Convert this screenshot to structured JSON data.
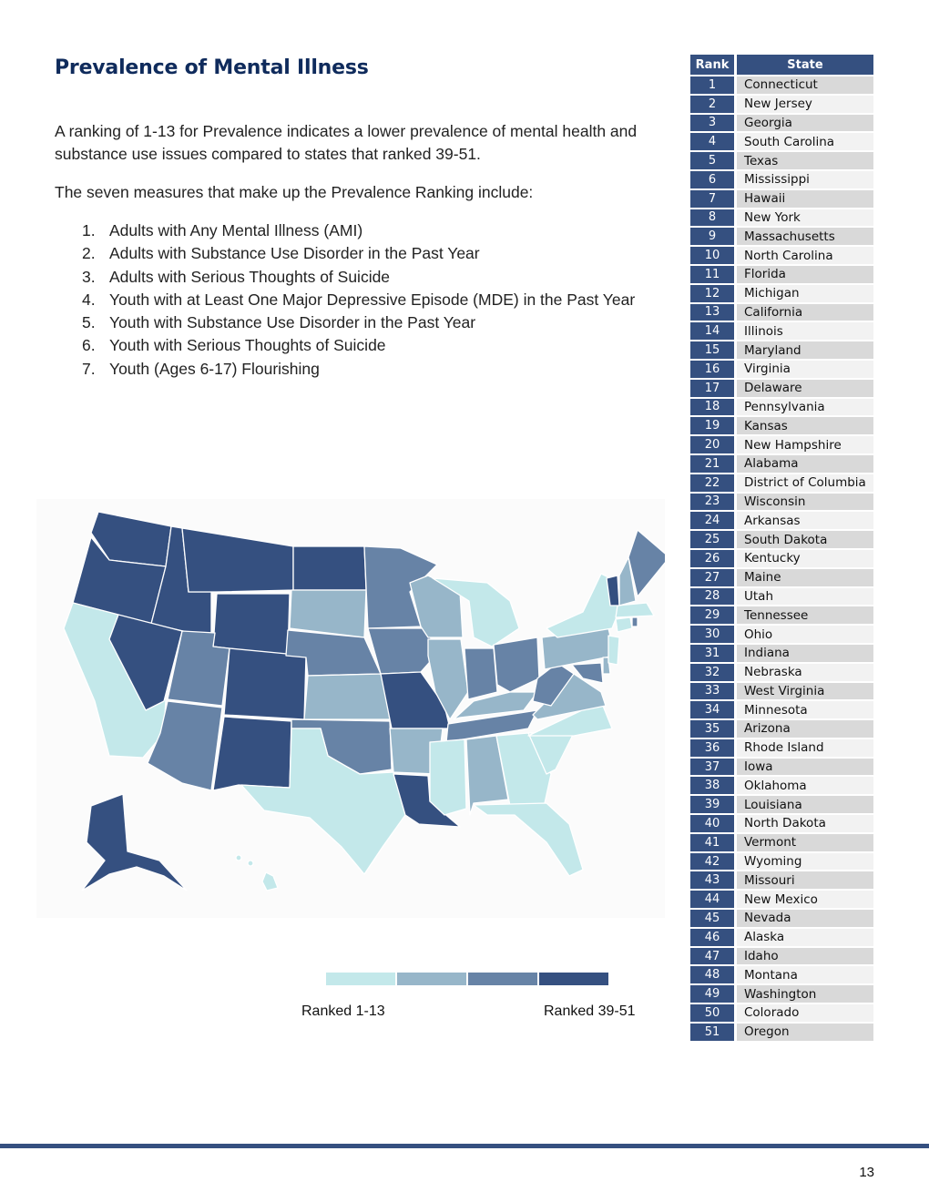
{
  "page": {
    "title": "Prevalence of Mental Illness",
    "intro": "A ranking of 1-13 for Prevalence indicates a lower prevalence of mental health and substance use issues compared to states that ranked 39-51.",
    "measures_intro": "The seven measures that make up the Prevalence Ranking include:",
    "measures": [
      {
        "num": "1.",
        "text": "Adults with Any Mental Illness (AMI)"
      },
      {
        "num": "2.",
        "text": "Adults with Substance Use Disorder in the Past Year"
      },
      {
        "num": "3.",
        "text": "Adults with Serious Thoughts of Suicide"
      },
      {
        "num": "4.",
        "text": "Youth with at Least One Major Depressive Episode (MDE) in the Past Year"
      },
      {
        "num": "5.",
        "text": "Youth with Substance Use Disorder in the Past Year"
      },
      {
        "num": "6.",
        "text": "Youth with Serious Thoughts of Suicide"
      },
      {
        "num": "7.",
        "text": "Youth (Ages 6-17) Flourishing"
      }
    ],
    "page_number": "13"
  },
  "legend": {
    "low_label": "Ranked 1-13",
    "high_label": "Ranked 39-51",
    "colors": [
      "#c3e8ea",
      "#97b6c9",
      "#6783a6",
      "#355080"
    ]
  },
  "table": {
    "headers": [
      "Rank",
      "State"
    ],
    "rows": [
      [
        "1",
        "Connecticut"
      ],
      [
        "2",
        "New Jersey"
      ],
      [
        "3",
        "Georgia"
      ],
      [
        "4",
        "South Carolina"
      ],
      [
        "5",
        "Texas"
      ],
      [
        "6",
        "Mississippi"
      ],
      [
        "7",
        "Hawaii"
      ],
      [
        "8",
        "New York"
      ],
      [
        "9",
        "Massachusetts"
      ],
      [
        "10",
        "North Carolina"
      ],
      [
        "11",
        "Florida"
      ],
      [
        "12",
        "Michigan"
      ],
      [
        "13",
        "California"
      ],
      [
        "14",
        "Illinois"
      ],
      [
        "15",
        "Maryland"
      ],
      [
        "16",
        "Virginia"
      ],
      [
        "17",
        "Delaware"
      ],
      [
        "18",
        "Pennsylvania"
      ],
      [
        "19",
        "Kansas"
      ],
      [
        "20",
        "New Hampshire"
      ],
      [
        "21",
        "Alabama"
      ],
      [
        "22",
        "District of Columbia"
      ],
      [
        "23",
        "Wisconsin"
      ],
      [
        "24",
        "Arkansas"
      ],
      [
        "25",
        "South Dakota"
      ],
      [
        "26",
        "Kentucky"
      ],
      [
        "27",
        "Maine"
      ],
      [
        "28",
        "Utah"
      ],
      [
        "29",
        "Tennessee"
      ],
      [
        "30",
        "Ohio"
      ],
      [
        "31",
        "Indiana"
      ],
      [
        "32",
        "Nebraska"
      ],
      [
        "33",
        "West Virginia"
      ],
      [
        "34",
        "Minnesota"
      ],
      [
        "35",
        "Arizona"
      ],
      [
        "36",
        "Rhode Island"
      ],
      [
        "37",
        "Iowa"
      ],
      [
        "38",
        "Oklahoma"
      ],
      [
        "39",
        "Louisiana"
      ],
      [
        "40",
        "North Dakota"
      ],
      [
        "41",
        "Vermont"
      ],
      [
        "42",
        "Wyoming"
      ],
      [
        "43",
        "Missouri"
      ],
      [
        "44",
        "New Mexico"
      ],
      [
        "45",
        "Nevada"
      ],
      [
        "46",
        "Alaska"
      ],
      [
        "47",
        "Idaho"
      ],
      [
        "48",
        "Montana"
      ],
      [
        "49",
        "Washington"
      ],
      [
        "50",
        "Colorado"
      ],
      [
        "51",
        "Oregon"
      ]
    ]
  }
}
